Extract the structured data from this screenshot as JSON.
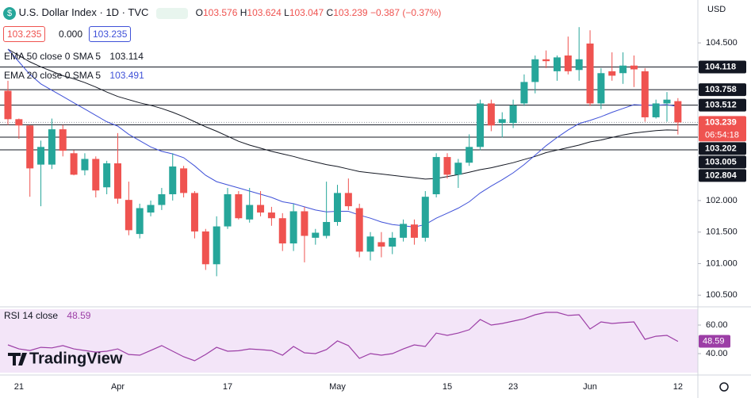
{
  "header": {
    "symbol": "U.S. Dollar Index · 1D · TVC",
    "ohlc_labels": [
      "O",
      "H",
      "L",
      "C"
    ],
    "change": "−0.387 (−0.37%)",
    "bid": "103.235",
    "spread": "0.000",
    "ask": "103.235",
    "currency": "USD",
    "countdown": "06:54:18",
    "branding": "TradingView"
  },
  "chart_data": [
    {
      "type": "candlestick",
      "categories": [
        null,
        "21",
        null,
        null,
        null,
        null,
        null,
        null,
        null,
        null,
        "Apr",
        null,
        null,
        null,
        null,
        null,
        null,
        null,
        null,
        null,
        "17",
        null,
        null,
        null,
        null,
        null,
        null,
        null,
        null,
        null,
        "May",
        null,
        null,
        null,
        null,
        null,
        null,
        null,
        null,
        null,
        "15",
        null,
        null,
        null,
        null,
        null,
        "23",
        null,
        null,
        null,
        null,
        null,
        null,
        "Jun",
        null,
        null,
        null,
        null,
        null,
        null,
        null,
        "12"
      ],
      "open": [
        103.74,
        103.29,
        103.19,
        102.57,
        102.57,
        103.13,
        102.75,
        102.48,
        102.66,
        102.21,
        102.59,
        102.01,
        101.47,
        101.81,
        101.93,
        102.1,
        102.51,
        102.12,
        101.51,
        100.99,
        101.59,
        102.1,
        101.7,
        101.93,
        101.81,
        101.72,
        101.32,
        101.83,
        101.41,
        101.44,
        101.66,
        102.12,
        101.88,
        101.19,
        101.34,
        101.27,
        101.41,
        101.62,
        101.41,
        102.1,
        102.69,
        102.41,
        102.6,
        102.85,
        103.54,
        103.23,
        103.23,
        103.54,
        103.88,
        104.24,
        104.05,
        104.3,
        104.07,
        104.49,
        103.54,
        104.05,
        104.02,
        104.14,
        104.05,
        103.32,
        103.54,
        103.576
      ],
      "high": [
        103.9,
        103.3,
        103.2,
        102.95,
        103.3,
        103.2,
        102.8,
        102.75,
        102.7,
        102.63,
        103.07,
        102.3,
        101.95,
        102.0,
        102.2,
        102.75,
        102.55,
        102.15,
        101.55,
        101.75,
        102.2,
        102.15,
        102.2,
        102.15,
        101.9,
        101.8,
        101.95,
        101.9,
        101.55,
        102.3,
        102.25,
        102.35,
        101.95,
        101.5,
        101.5,
        101.5,
        101.7,
        101.7,
        102.15,
        102.75,
        102.75,
        102.66,
        103.05,
        103.6,
        103.6,
        103.4,
        103.6,
        104.0,
        104.3,
        104.38,
        104.3,
        104.6,
        104.75,
        104.7,
        104.1,
        104.35,
        104.35,
        104.3,
        104.1,
        103.6,
        103.72,
        103.624
      ],
      "low": [
        103.2,
        102.98,
        102.06,
        101.91,
        102.5,
        102.7,
        102.4,
        102.4,
        102.05,
        102.1,
        101.95,
        101.45,
        101.4,
        101.75,
        101.85,
        102.0,
        102.05,
        101.4,
        100.9,
        100.8,
        101.55,
        101.7,
        101.65,
        101.75,
        101.6,
        101.2,
        101.2,
        101.02,
        101.3,
        101.4,
        101.6,
        101.85,
        101.1,
        101.05,
        101.1,
        101.15,
        101.35,
        101.3,
        101.35,
        102.05,
        102.35,
        102.2,
        102.55,
        102.8,
        103.1,
        103.0,
        103.15,
        103.5,
        103.7,
        104.1,
        103.9,
        104.0,
        103.9,
        103.5,
        103.45,
        103.9,
        103.85,
        103.8,
        103.25,
        103.3,
        103.25,
        103.047
      ],
      "close": [
        103.29,
        103.19,
        102.51,
        102.85,
        103.13,
        102.79,
        102.41,
        102.66,
        102.16,
        102.59,
        102.03,
        101.53,
        101.88,
        101.93,
        102.1,
        102.54,
        102.12,
        101.51,
        100.99,
        101.59,
        102.1,
        101.72,
        101.93,
        101.81,
        101.72,
        101.32,
        101.83,
        101.44,
        101.49,
        101.66,
        102.12,
        101.91,
        101.19,
        101.43,
        101.27,
        101.41,
        101.63,
        101.41,
        102.06,
        102.69,
        102.41,
        102.6,
        102.85,
        103.54,
        103.19,
        103.29,
        103.51,
        103.88,
        104.24,
        104.21,
        104.27,
        104.05,
        104.24,
        103.54,
        104.02,
        103.98,
        104.14,
        104.08,
        103.32,
        103.54,
        103.6,
        103.239
      ],
      "up_color": "#26a69a",
      "down_color": "#ef5350",
      "series": [
        {
          "name": "EMA 50 close 0 SMA 5",
          "color": "#131722",
          "values": [
            104.4,
            104.3,
            104.2,
            104.12,
            104.05,
            103.98,
            103.93,
            103.87,
            103.8,
            103.72,
            103.65,
            103.6,
            103.55,
            103.51,
            103.46,
            103.4,
            103.33,
            103.25,
            103.17,
            103.1,
            103.02,
            102.94,
            102.88,
            102.83,
            102.78,
            102.74,
            102.7,
            102.65,
            102.61,
            102.57,
            102.54,
            102.5,
            102.46,
            102.44,
            102.42,
            102.4,
            102.38,
            102.36,
            102.34,
            102.35,
            102.38,
            102.41,
            102.45,
            102.49,
            102.52,
            102.56,
            102.6,
            102.65,
            102.7,
            102.76,
            102.8,
            102.84,
            102.88,
            102.93,
            102.96,
            103.0,
            103.04,
            103.07,
            103.09,
            103.11,
            103.12,
            103.114
          ]
        },
        {
          "name": "EMA 20 close 0 SMA 5",
          "color": "#3f51d8",
          "values": [
            104.4,
            104.2,
            104.0,
            103.85,
            103.75,
            103.65,
            103.55,
            103.45,
            103.35,
            103.25,
            103.18,
            103.05,
            102.95,
            102.85,
            102.78,
            102.74,
            102.68,
            102.55,
            102.4,
            102.3,
            102.25,
            102.2,
            102.15,
            102.1,
            102.05,
            101.98,
            101.95,
            101.9,
            101.85,
            101.82,
            101.83,
            101.83,
            101.77,
            101.72,
            101.66,
            101.62,
            101.6,
            101.58,
            101.62,
            101.72,
            101.8,
            101.88,
            101.98,
            102.12,
            102.23,
            102.33,
            102.44,
            102.57,
            102.72,
            102.87,
            103.0,
            103.12,
            103.22,
            103.27,
            103.33,
            103.4,
            103.46,
            103.52,
            103.51,
            103.51,
            103.52,
            103.491
          ]
        }
      ],
      "levels": [
        104.118,
        103.758,
        103.512,
        103.202,
        103.005,
        102.804
      ],
      "ylim": [
        100.34,
        105.18
      ],
      "yticks": [
        {
          "value": 104.5,
          "label": "104.500"
        },
        {
          "value": 102,
          "label": "102.000"
        },
        {
          "value": 101.5,
          "label": "101.500"
        },
        {
          "value": 101,
          "label": "101.000"
        },
        {
          "value": 100.5,
          "label": "100.500"
        }
      ]
    },
    {
      "type": "line",
      "name": "RSI 14 close",
      "color": "#9c3ea6",
      "values": [
        46.1,
        43.3,
        42.2,
        44.4,
        44.0,
        45.6,
        43.3,
        42.2,
        41.1,
        41.7,
        43.3,
        39.4,
        38.9,
        42.2,
        45.6,
        41.7,
        37.8,
        35.0,
        39.4,
        44.4,
        41.7,
        42.0,
        43.3,
        42.8,
        42.2,
        38.9,
        45.0,
        40.6,
        40.0,
        42.8,
        48.9,
        45.6,
        36.7,
        40.0,
        38.9,
        40.0,
        43.3,
        46.1,
        45.0,
        54.4,
        52.8,
        54.4,
        56.7,
        63.9,
        60.0,
        61.1,
        62.8,
        64.4,
        67.2,
        68.9,
        68.9,
        66.7,
        67.2,
        57.2,
        62.2,
        61.1,
        61.7,
        62.2,
        50.0,
        52.2,
        52.8,
        48.59
      ],
      "ylim": [
        26.7,
        71.1
      ],
      "yticks": [
        {
          "value": 60,
          "label": "60.00"
        },
        {
          "value": 40,
          "label": "40.00"
        }
      ]
    }
  ]
}
